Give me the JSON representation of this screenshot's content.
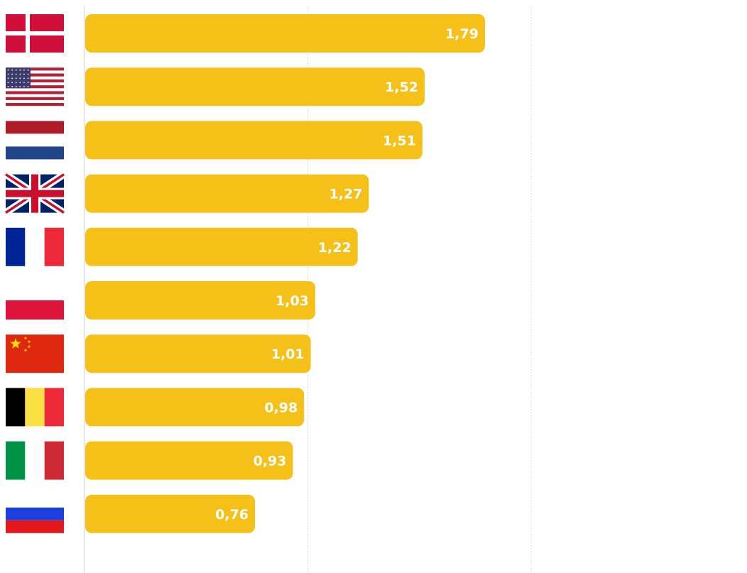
{
  "chart_data": {
    "type": "bar",
    "orientation": "horizontal",
    "categories": [
      "Denmark",
      "United States",
      "Netherlands",
      "United Kingdom",
      "France",
      "Poland",
      "China",
      "Belgium",
      "Italy",
      "Russia"
    ],
    "values": [
      1.79,
      1.52,
      1.51,
      1.27,
      1.22,
      1.03,
      1.01,
      0.98,
      0.93,
      0.76
    ],
    "value_labels": [
      "1,79",
      "1,52",
      "1,51",
      "1,27",
      "1,22",
      "1,03",
      "1,01",
      "0,98",
      "0,93",
      "0,76"
    ],
    "flags": [
      "flag-denmark-icon",
      "flag-usa-icon",
      "flag-netherlands-icon",
      "flag-uk-icon",
      "flag-france-icon",
      "flag-poland-icon",
      "flag-china-icon",
      "flag-belgium-icon",
      "flag-italy-icon",
      "flag-russia-icon"
    ],
    "xlim": [
      0,
      2.5
    ],
    "gridlines": [
      0,
      1,
      2
    ],
    "grid": true,
    "title": "",
    "xlabel": "",
    "ylabel": "",
    "bar_color": "#f5c018",
    "label_color": "#ffffff"
  }
}
